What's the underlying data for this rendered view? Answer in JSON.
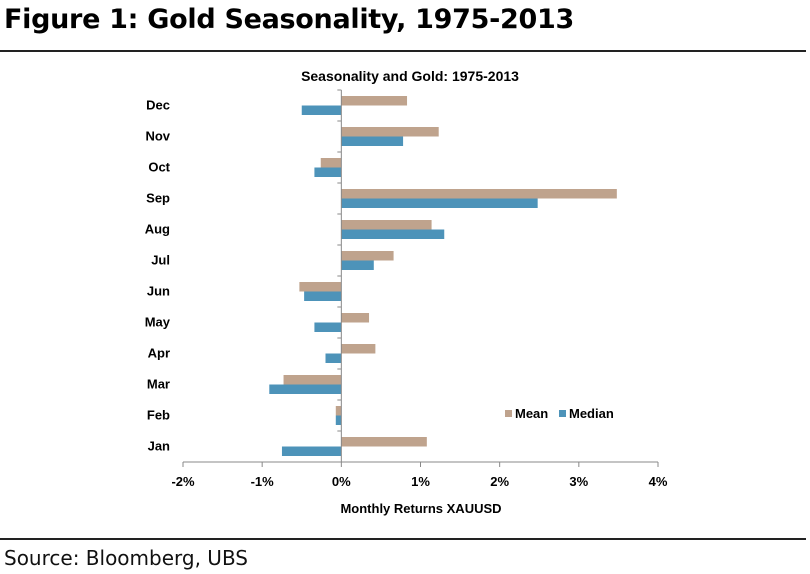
{
  "figure": {
    "title": "Figure 1: Gold Seasonality, 1975-2013",
    "source": "Source:  Bloomberg, UBS"
  },
  "chart_data": {
    "type": "bar",
    "orientation": "horizontal",
    "title": "Seasonality and Gold: 1975-2013",
    "xlabel": "Monthly Returns XAUUSD",
    "ylabel": "",
    "categories": [
      "Jan",
      "Feb",
      "Mar",
      "Apr",
      "May",
      "Jun",
      "Jul",
      "Aug",
      "Sep",
      "Oct",
      "Nov",
      "Dec"
    ],
    "series": [
      {
        "name": "Mean",
        "color": "#bfa38d",
        "values": [
          1.08,
          -0.07,
          -0.73,
          0.43,
          0.35,
          -0.53,
          0.66,
          1.14,
          3.48,
          -0.26,
          1.23,
          0.83
        ]
      },
      {
        "name": "Median",
        "color": "#4d93b9",
        "values": [
          -0.75,
          -0.07,
          -0.91,
          -0.2,
          -0.34,
          -0.47,
          0.41,
          1.3,
          2.48,
          -0.34,
          0.78,
          -0.5
        ]
      }
    ],
    "xlim": [
      -2,
      4
    ],
    "xticks": [
      -2,
      -1,
      0,
      1,
      2,
      3,
      4
    ],
    "xtick_labels": [
      "-2%",
      "-1%",
      "0%",
      "1%",
      "2%",
      "3%",
      "4%"
    ],
    "grid": false,
    "legend_position": "lower-right"
  }
}
